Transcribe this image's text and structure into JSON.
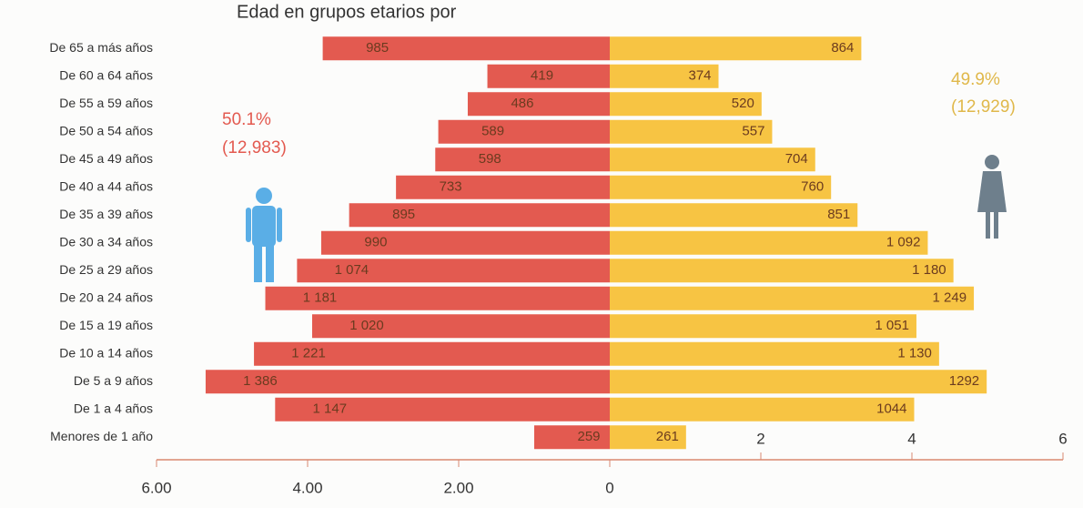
{
  "chart_data": {
    "type": "bar",
    "title": "Edad en grupos etarios por",
    "categories": [
      "De 65 a más años",
      "De 60 a 64 años",
      "De 55 a 59 años",
      "De 50 a 54 años",
      "De 45 a 49 años",
      "De 40 a 44 años",
      "De 35 a 39 años",
      "De 30 a 34 años",
      "De 25 a 29 años",
      "De 20 a 24 años",
      "De 15 a 19 años",
      "De 10 a 14 años",
      "De 5 a 9 años",
      "De 1 a 4 años",
      "Menores de 1 año"
    ],
    "series": [
      {
        "color": "#e35a50",
        "side": "left",
        "values": [
          3.8,
          1.62,
          1.88,
          2.27,
          2.31,
          2.83,
          3.45,
          3.82,
          4.14,
          4.56,
          3.94,
          4.71,
          5.35,
          4.43,
          1.0
        ],
        "counts": [
          "985",
          "419",
          "486",
          "589",
          "598",
          "733",
          "895",
          "990",
          "1 074",
          "1 181",
          "1 020",
          "1 221",
          "1 386",
          "1 147",
          "259"
        ]
      },
      {
        "color": "#f7c443",
        "side": "right",
        "values": [
          3.33,
          1.44,
          2.01,
          2.15,
          2.72,
          2.93,
          3.28,
          4.21,
          4.55,
          4.82,
          4.06,
          4.36,
          4.99,
          4.03,
          1.01
        ],
        "counts": [
          "864",
          "374",
          "520",
          "557",
          "704",
          "760",
          "851",
          "1 092",
          "1 180",
          "1 249",
          "1 051",
          "1 130",
          "1292",
          "1044",
          "261"
        ]
      }
    ],
    "annotations": [
      {
        "text": "50.1%",
        "series": 0
      },
      {
        "text": "(12,983)",
        "series": 0
      },
      {
        "text": "49.9%",
        "series": 1
      },
      {
        "text": "(12,929)",
        "series": 1
      }
    ],
    "xlim": [
      0,
      6
    ],
    "xticks_left": [
      {
        "value": 6,
        "label": "6.00"
      },
      {
        "value": 4,
        "label": "4.00"
      },
      {
        "value": 2,
        "label": "2.00"
      },
      0
    ],
    "xticks_right": [
      2,
      4,
      6
    ]
  }
}
